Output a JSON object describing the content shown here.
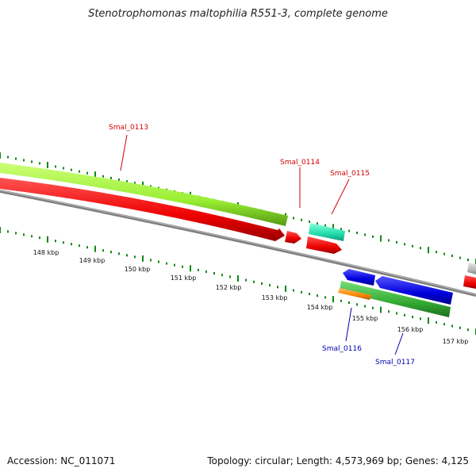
{
  "title": "Stenotrophomonas maltophilia R551-3, complete genome",
  "footer": {
    "accession": "Accession: NC_011071",
    "summary": "Topology: circular; Length: 4,573,969 bp; Genes: 4,125"
  },
  "colors": {
    "forward_label": "#d40000",
    "reverse_label": "#0000b0",
    "ticks": "#118811",
    "backbone": "#808080",
    "lime": "#99ee33",
    "red": "#ee0000",
    "teal": "#22ddaa",
    "blue": "#0000dd",
    "green": "#33aa33",
    "orange": "#ff8800",
    "gray": "#b8b8b8"
  },
  "kbp_labels": [
    "148 kbp",
    "149 kbp",
    "150 kbp",
    "151 kbp",
    "152 kbp",
    "153 kbp",
    "154 kbp",
    "155 kbp",
    "156 kbp",
    "157 kbp"
  ],
  "genes": [
    {
      "label": "Smal_0113",
      "strand": "forward",
      "color": "red"
    },
    {
      "label": "Smal_0114",
      "strand": "forward",
      "color": "red"
    },
    {
      "label": "Smal_0115",
      "strand": "forward",
      "color": "red"
    },
    {
      "label": "Smal_0116",
      "strand": "reverse",
      "color": "blue"
    },
    {
      "label": "Smal_0117",
      "strand": "reverse",
      "color": "blue"
    }
  ]
}
